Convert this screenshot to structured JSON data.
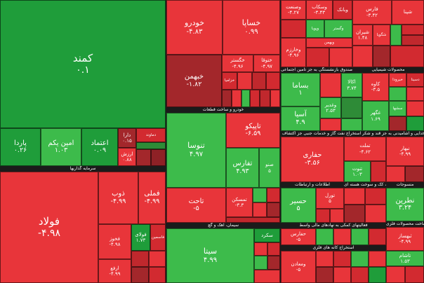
{
  "colors": {
    "green_strong": "#1f9d3a",
    "green": "#3dbb4b",
    "red": "#e8353a",
    "red_dark": "#a3272b",
    "background": "#1b1b1b"
  },
  "headers": {
    "basic_metals": "فلزات اساسی",
    "refinery": "فراورده های نفتی، کک و سوخت هسته ای",
    "petrochem": "محصولات شیمیایی",
    "auto": "خودرو و ساخت قطعات",
    "cement": "سیمان، آهک و گچ",
    "multi": "شرکتهای چند رشته ای صنعتی",
    "bank": "بانکها و موسسات اعتباری",
    "telecom": "اطلاعات و ارتباطات",
    "investment": "سرمایه گذاریها",
    "food": "محصولات غذایی و آشامیدنی به جز قند و شکر",
    "mining": "استخراج کانه های فلزی",
    "utility": "عرضه برق، گاز، بخار و آب گرم",
    "pharma": "مواد و محصولات دارویی",
    "ceramic": "کاشی و سرامیک",
    "transport": "حمل و نقل، انبارداری و ارتباطات",
    "insurance": "بیمه و صندوق بازنشستگی به جز تامین اجتماعی",
    "metal_products": "ساخت محصولات فلزی",
    "sugar": "قند و شکر",
    "machinery": "ماشین آلات و تجهیزات",
    "oil_ext": "استخراج نفت گاز و خدمات جنبی جز اکتشاف",
    "coal": "استخراج زغال سنگ",
    "financial": "فعالیتهای کمکی به نهادهای مالی واسط",
    "rubber": "لاستیک و پلاستیک",
    "retail": "خرده فروشی",
    "textile": "منسوجات"
  },
  "tiles": {
    "kamand": {
      "name": "کمند",
      "value": "۰.۱"
    },
    "pardad": {
      "name": "پاردا",
      "value": "۰.۲۶"
    },
    "aminyekom": {
      "name": "امین یکم",
      "value": "۱.۰۳"
    },
    "etemad": {
      "name": "اعتماد",
      "value": "۰.۰۹"
    },
    "dara": {
      "name": "دارا",
      "value": "۰.۱۵"
    },
    "damavar": {
      "name": "دماوند",
      "value": ""
    },
    "arzesh": {
      "name": "ارزش",
      "value": "۰.۸۸"
    },
    "kharooo": {
      "name": "خودرو",
      "value": "-۴.۸۳"
    },
    "khsapa": {
      "name": "خساپا",
      "value": "۰.۹۹"
    },
    "kheybahman": {
      "name": "خبهمن",
      "value": "-۱.۸۲"
    },
    "khgostar": {
      "name": "خگستر",
      "value": "-۴.۹۶"
    },
    "khtogha": {
      "name": "ختوقا",
      "value": "-۴.۹۷"
    },
    "khzamia": {
      "name": "خزامیا",
      "value": ""
    },
    "vsanat": {
      "name": "وصنعت",
      "value": "-۴.۲۷"
    },
    "vmaskan": {
      "name": "وسکاب",
      "value": "-۳.۴۳"
    },
    "vbank": {
      "name": "وبانک",
      "value": ""
    },
    "vgstar": {
      "name": "وگستر",
      "value": ""
    },
    "vpaya": {
      "name": "وپویا",
      "value": ""
    },
    "farse": {
      "name": "فارس",
      "value": "-۳.۴۲"
    },
    "shepna": {
      "name": "شپنا",
      "value": ""
    },
    "shiran": {
      "name": "شیران",
      "value": "۱.۴۸"
    },
    "shegoya": {
      "name": "شگویا",
      "value": ""
    },
    "kharazm": {
      "name": "وخارزم",
      "value": "-۴.۹۶"
    },
    "vkhazar": {
      "name": "وبهمن",
      "value": ""
    },
    "bama": {
      "name": "بساما",
      "value": "۱"
    },
    "asia": {
      "name": "آسیا",
      "value": "۴.۹"
    },
    "haghari": {
      "name": "حفاری",
      "value": "-۳.۵۶"
    },
    "tamelat": {
      "name": "تملت",
      "value": "-۴.۶۲"
    },
    "vanut": {
      "name": "تنوت",
      "value": "۱.۰۳"
    },
    "tenoso": {
      "name": "تنوسا",
      "value": "۴.۹۷"
    },
    "tapakhsh": {
      "name": "تاپیکو",
      "value": "-۶.۵۹"
    },
    "tafarsh": {
      "name": "تفارس",
      "value": "۴.۹۳"
    },
    "tahchad": {
      "name": "تاحت",
      "value": "-۵"
    },
    "tmaskan": {
      "name": "تمسکن",
      "value": "-۳.۳"
    },
    "soroj": {
      "name": "صنو",
      "value": "۵"
    },
    "foolad": {
      "name": "فولاد",
      "value": "-۴.۹۸"
    },
    "zob": {
      "name": "ذوب",
      "value": "-۴.۹۹"
    },
    "femeli": {
      "name": "فملی",
      "value": "-۴.۹۹"
    },
    "fkhooz": {
      "name": "فخوز",
      "value": "-۴.۹۸"
    },
    "foolai": {
      "name": "فولای",
      "value": "۱.۷۳"
    },
    "fasame": {
      "name": "فاسمین",
      "value": ""
    },
    "arfa": {
      "name": "ارفع",
      "value": "-۴.۹۹"
    },
    "seita": {
      "name": "سیتا",
      "value": "۴.۹۹"
    },
    "sekord": {
      "name": "سکرد",
      "value": "-۲"
    },
    "kherzan": {
      "name": "خزر",
      "value": ""
    },
    "hesir": {
      "name": "حسیر",
      "value": "۵"
    },
    "tourol": {
      "name": "تورل",
      "value": "۵"
    },
    "hafaran": {
      "name": "حفارس",
      "value": "-۵"
    },
    "maaden": {
      "name": "ومعادن",
      "value": "-۵"
    },
    "nabahar": {
      "name": "نبهار",
      "value": "-۴.۹۹"
    },
    "tabriz": {
      "name": "نطرین",
      "value": "۳.۲۴"
    },
    "sabel": {
      "name": "ثبهساز",
      "value": "-۴.۹۹"
    },
    "kaveh": {
      "name": "کاوه",
      "value": "-۳.۵"
    },
    "tasham": {
      "name": "تاشام",
      "value": "۱.۵۳"
    },
    "akam": {
      "name": "اکالا",
      "value": "۳.۷۴"
    },
    "vagha": {
      "name": "وغدیر",
      "value": "۲.۵۳"
    },
    "ghohar": {
      "name": "غگهر",
      "value": "۱.۶۹"
    },
    "khiroda": {
      "name": "خیرودا",
      "value": ""
    },
    "seshgha": {
      "name": "سشها",
      "value": ""
    },
    "dsina": {
      "name": "دسینا",
      "value": ""
    }
  }
}
